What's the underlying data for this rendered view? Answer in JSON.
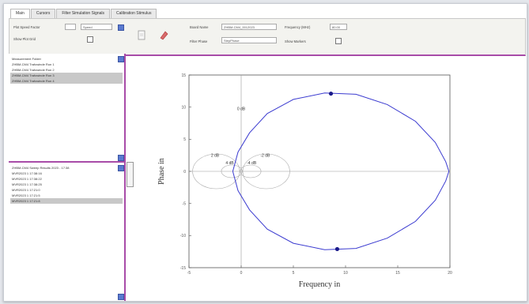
{
  "tabs": [
    "Main",
    "Cursors",
    "Filter Simulation Signals",
    "Calibration Stimulus"
  ],
  "toolbar": {
    "first_label": "Plot Speed Factor",
    "first_value": "Speed",
    "second_label": "Show Plot Grid",
    "third_label": "Board Name",
    "third_value": "ZHBM-CM4_0012023",
    "fourth_label": "Frequency (MHz)",
    "fourth_value": "80.00",
    "fifth_label": "Filter Phase",
    "fifth_value": "StepPhase",
    "sixth_label": "Show Markers"
  },
  "list_top": {
    "items": [
      "Measurement Folder",
      "ZHBM-CM4 Trafowinde Run 1",
      "ZHBM-CM4 Trafowinde Run 2",
      "ZHBM-CM4 Trafowinde Run 3",
      "ZHBM-CM4 Trafowinde Run 4"
    ],
    "selected": [
      3,
      4
    ]
  },
  "list_bottom": {
    "items": [
      "ZHBM-CM4 Sweep Results 2023 - 17:38",
      "MVR2023 1 17:38:16",
      "MVR2023 1 17:38:22",
      "MVR2023 1 17:38:25",
      "MVR2023 1 17:21:0",
      "MVR2023 1 17:21:5",
      "MVR2023 1 17:21:8"
    ],
    "selected": [
      6
    ]
  },
  "colors": {
    "accent": "#a84ca8",
    "curve": "#3b3bd0"
  },
  "chart_data": {
    "type": "line",
    "xlabel": "Frequency in",
    "ylabel": "Phase in",
    "xlim": [
      -5,
      20
    ],
    "ylim": [
      -15,
      15
    ],
    "xticks": [
      -5,
      0,
      5,
      10,
      15,
      20
    ],
    "yticks": [
      -15,
      -10,
      -5,
      0,
      5,
      10,
      15
    ],
    "grid": false,
    "annotations": [
      {
        "text": "0 dB",
        "x": 0,
        "y": 9.5
      },
      {
        "text": "2 dB",
        "x": -2.5,
        "y": 2.3
      },
      {
        "text": "-2 dB",
        "x": 2.3,
        "y": 2.3
      },
      {
        "text": "4 dB",
        "x": -1.1,
        "y": 1.1
      },
      {
        "text": "-4 dB",
        "x": 1.0,
        "y": 1.1
      }
    ],
    "series": [
      {
        "points": [
          [
            -0.8,
            0
          ],
          [
            -0.3,
            3
          ],
          [
            0.8,
            6
          ],
          [
            2.5,
            9
          ],
          [
            5,
            11.2
          ],
          [
            8,
            12.2
          ],
          [
            11,
            12
          ],
          [
            14,
            10.4
          ],
          [
            16.7,
            7.8
          ],
          [
            18.6,
            4.5
          ],
          [
            19.6,
            1.5
          ],
          [
            19.9,
            0
          ],
          [
            19.6,
            -1.5
          ],
          [
            18.6,
            -4.5
          ],
          [
            16.7,
            -7.8
          ],
          [
            14,
            -10.4
          ],
          [
            11,
            -12
          ],
          [
            8,
            -12.2
          ],
          [
            5,
            -11.2
          ],
          [
            2.5,
            -9
          ],
          [
            0.8,
            -6
          ],
          [
            -0.3,
            -3
          ],
          [
            -0.8,
            0
          ]
        ]
      }
    ],
    "markers": [
      [
        8.6,
        12.1
      ],
      [
        9.2,
        -12.1
      ]
    ]
  }
}
